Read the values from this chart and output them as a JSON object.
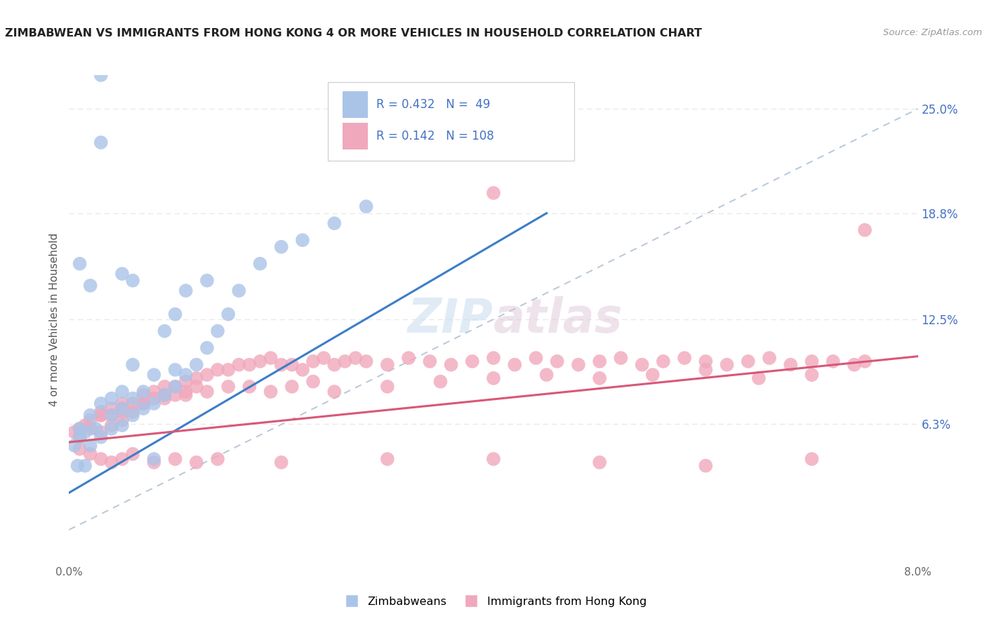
{
  "title": "ZIMBABWEAN VS IMMIGRANTS FROM HONG KONG 4 OR MORE VEHICLES IN HOUSEHOLD CORRELATION CHART",
  "source": "Source: ZipAtlas.com",
  "ylabel": "4 or more Vehicles in Household",
  "xlim": [
    0.0,
    0.08
  ],
  "ylim": [
    -0.02,
    0.27
  ],
  "ytick_positions": [
    0.063,
    0.125,
    0.188,
    0.25
  ],
  "ytick_labels": [
    "6.3%",
    "12.5%",
    "18.8%",
    "25.0%"
  ],
  "blue_R": 0.432,
  "blue_N": 49,
  "pink_R": 0.142,
  "pink_N": 108,
  "blue_color": "#aac4e8",
  "blue_line_color": "#3d7ec8",
  "pink_color": "#f0a8bc",
  "pink_line_color": "#d85878",
  "dashed_line_color": "#b8c8d8",
  "background_color": "#ffffff",
  "grid_color": "#e8e8e8",
  "blue_line_x0": 0.0,
  "blue_line_y0": 0.022,
  "blue_line_x1": 0.045,
  "blue_line_y1": 0.188,
  "pink_line_x0": 0.0,
  "pink_line_y0": 0.052,
  "pink_line_x1": 0.08,
  "pink_line_y1": 0.103,
  "blue_scatter_x": [
    0.0005,
    0.001,
    0.001,
    0.0015,
    0.002,
    0.002,
    0.0025,
    0.003,
    0.003,
    0.004,
    0.004,
    0.004,
    0.005,
    0.005,
    0.005,
    0.006,
    0.006,
    0.006,
    0.007,
    0.007,
    0.008,
    0.008,
    0.009,
    0.009,
    0.01,
    0.01,
    0.01,
    0.011,
    0.012,
    0.013,
    0.014,
    0.015,
    0.016,
    0.018,
    0.02,
    0.022,
    0.025,
    0.028,
    0.011,
    0.013,
    0.005,
    0.008,
    0.006,
    0.003,
    0.002,
    0.001,
    0.0008,
    0.0015,
    0.003
  ],
  "blue_scatter_y": [
    0.05,
    0.055,
    0.06,
    0.058,
    0.05,
    0.068,
    0.06,
    0.055,
    0.075,
    0.06,
    0.068,
    0.078,
    0.062,
    0.072,
    0.082,
    0.068,
    0.078,
    0.098,
    0.072,
    0.082,
    0.075,
    0.092,
    0.08,
    0.118,
    0.085,
    0.095,
    0.128,
    0.092,
    0.098,
    0.108,
    0.118,
    0.128,
    0.142,
    0.158,
    0.168,
    0.172,
    0.182,
    0.192,
    0.142,
    0.148,
    0.152,
    0.042,
    0.148,
    0.27,
    0.145,
    0.158,
    0.038,
    0.038,
    0.23
  ],
  "pink_scatter_x": [
    0.0005,
    0.001,
    0.001,
    0.0015,
    0.002,
    0.002,
    0.003,
    0.003,
    0.003,
    0.004,
    0.004,
    0.004,
    0.005,
    0.005,
    0.005,
    0.006,
    0.006,
    0.007,
    0.007,
    0.008,
    0.008,
    0.009,
    0.009,
    0.01,
    0.01,
    0.011,
    0.011,
    0.012,
    0.012,
    0.013,
    0.014,
    0.015,
    0.016,
    0.017,
    0.018,
    0.019,
    0.02,
    0.021,
    0.022,
    0.023,
    0.024,
    0.025,
    0.026,
    0.027,
    0.028,
    0.03,
    0.032,
    0.034,
    0.036,
    0.038,
    0.04,
    0.042,
    0.044,
    0.046,
    0.048,
    0.05,
    0.052,
    0.054,
    0.056,
    0.058,
    0.06,
    0.062,
    0.064,
    0.066,
    0.068,
    0.07,
    0.072,
    0.074,
    0.075,
    0.003,
    0.005,
    0.007,
    0.009,
    0.011,
    0.013,
    0.015,
    0.017,
    0.019,
    0.021,
    0.023,
    0.025,
    0.03,
    0.035,
    0.04,
    0.045,
    0.05,
    0.055,
    0.06,
    0.065,
    0.07,
    0.001,
    0.002,
    0.003,
    0.004,
    0.005,
    0.006,
    0.008,
    0.01,
    0.012,
    0.014,
    0.02,
    0.03,
    0.04,
    0.05,
    0.06,
    0.07,
    0.04,
    0.075
  ],
  "pink_scatter_y": [
    0.058,
    0.06,
    0.055,
    0.062,
    0.065,
    0.06,
    0.07,
    0.068,
    0.058,
    0.072,
    0.068,
    0.062,
    0.075,
    0.07,
    0.065,
    0.075,
    0.07,
    0.08,
    0.075,
    0.082,
    0.078,
    0.085,
    0.08,
    0.085,
    0.08,
    0.088,
    0.082,
    0.09,
    0.085,
    0.092,
    0.095,
    0.095,
    0.098,
    0.098,
    0.1,
    0.102,
    0.098,
    0.098,
    0.095,
    0.1,
    0.102,
    0.098,
    0.1,
    0.102,
    0.1,
    0.098,
    0.102,
    0.1,
    0.098,
    0.1,
    0.102,
    0.098,
    0.102,
    0.1,
    0.098,
    0.1,
    0.102,
    0.098,
    0.1,
    0.102,
    0.1,
    0.098,
    0.1,
    0.102,
    0.098,
    0.1,
    0.1,
    0.098,
    0.1,
    0.068,
    0.072,
    0.075,
    0.078,
    0.08,
    0.082,
    0.085,
    0.085,
    0.082,
    0.085,
    0.088,
    0.082,
    0.085,
    0.088,
    0.09,
    0.092,
    0.09,
    0.092,
    0.095,
    0.09,
    0.092,
    0.048,
    0.045,
    0.042,
    0.04,
    0.042,
    0.045,
    0.04,
    0.042,
    0.04,
    0.042,
    0.04,
    0.042,
    0.042,
    0.04,
    0.038,
    0.042,
    0.2,
    0.178
  ]
}
